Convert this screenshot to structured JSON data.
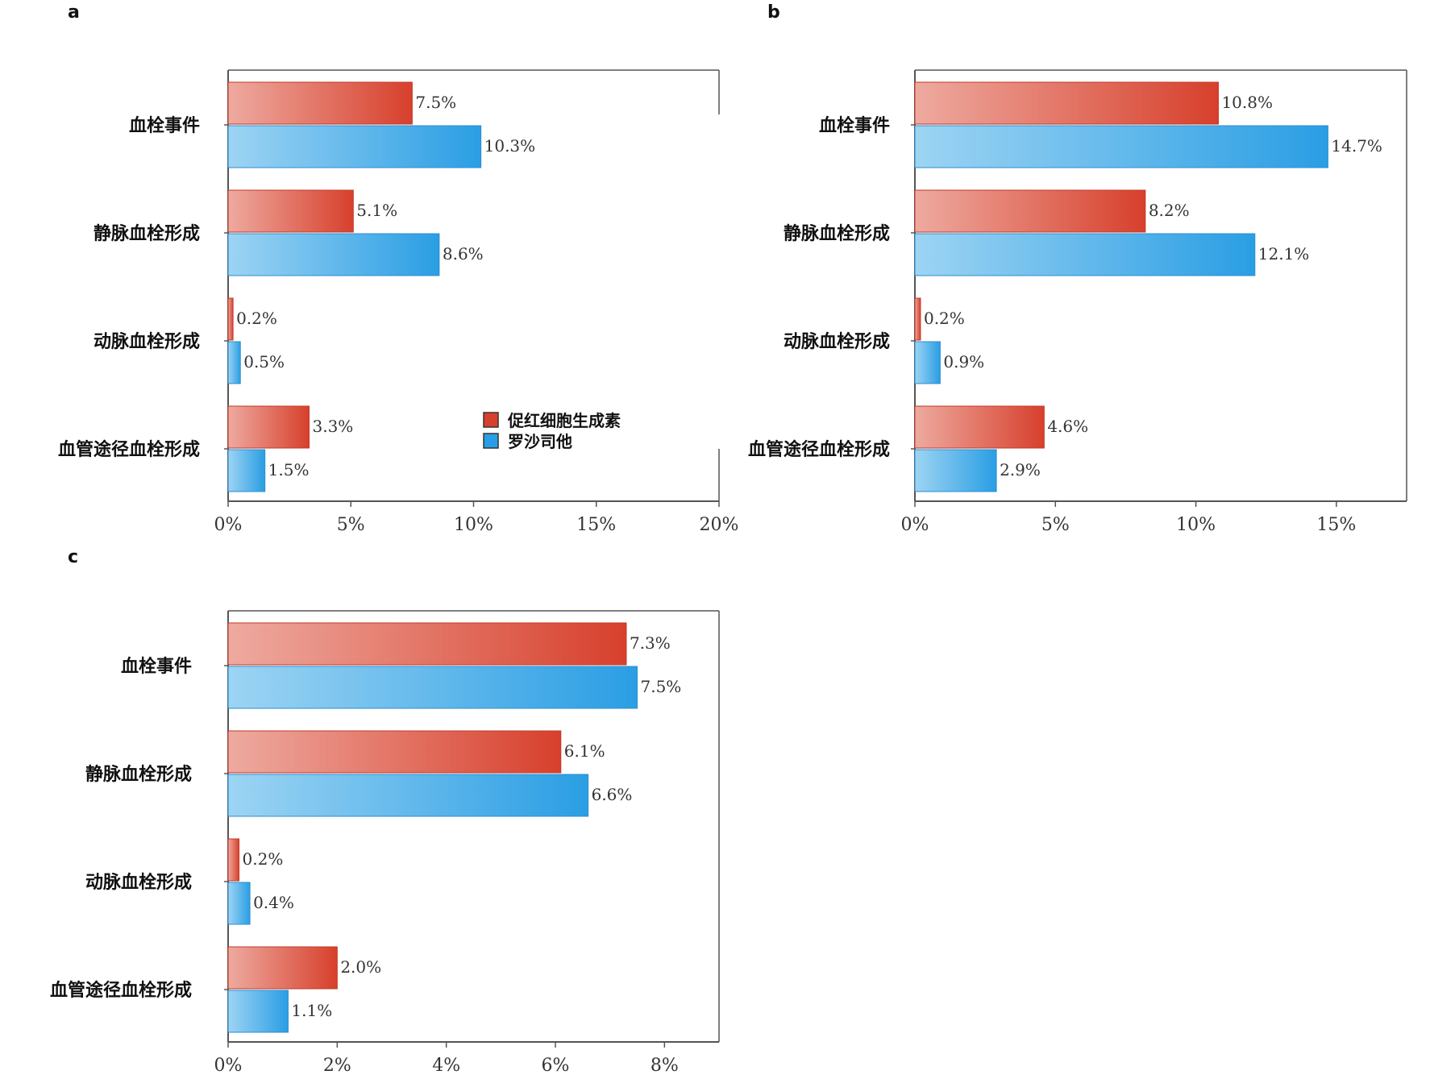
{
  "colors": {
    "epo_dark": "#d7402c",
    "epo_light": "#eeaaa0",
    "epo_stroke": "#c23a28",
    "rox_dark": "#2a9ee4",
    "rox_light": "#9dd4f3",
    "rox_stroke": "#2b8ed0",
    "frame": "#555555"
  },
  "legend": {
    "items": [
      "促红细胞生成素",
      "罗沙司他"
    ]
  },
  "chart_data": [
    {
      "panel": "a",
      "type": "bar",
      "orientation": "horizontal",
      "categories": [
        "血栓事件",
        "静脉血栓形成",
        "动脉血栓形成",
        "血管途径血栓形成"
      ],
      "series": [
        {
          "name": "促红细胞生成素",
          "values": [
            7.5,
            5.1,
            0.2,
            3.3
          ],
          "labels": [
            "7.5%",
            "5.1%",
            "0.2%",
            "3.3%"
          ]
        },
        {
          "name": "罗沙司他",
          "values": [
            10.3,
            8.6,
            0.5,
            1.5
          ],
          "labels": [
            "10.3%",
            "8.6%",
            "0.5%",
            "1.5%"
          ]
        }
      ],
      "xlim": [
        0,
        20
      ],
      "xticks": [
        0,
        5,
        10,
        15,
        20
      ],
      "xtick_labels": [
        "0%",
        "5%",
        "10%",
        "15%",
        "20%"
      ],
      "legend_position": "lower-right",
      "grid": false
    },
    {
      "panel": "b",
      "type": "bar",
      "orientation": "horizontal",
      "categories": [
        "血栓事件",
        "静脉血栓形成",
        "动脉血栓形成",
        "血管途径血栓形成"
      ],
      "series": [
        {
          "name": "促红细胞生成素",
          "values": [
            10.8,
            8.2,
            0.2,
            4.6
          ],
          "labels": [
            "10.8%",
            "8.2%",
            "0.2%",
            "4.6%"
          ]
        },
        {
          "name": "罗沙司他",
          "values": [
            14.7,
            12.1,
            0.9,
            2.9
          ],
          "labels": [
            "14.7%",
            "12.1%",
            "0.9%",
            "2.9%"
          ]
        }
      ],
      "xlim": [
        0,
        17.5
      ],
      "xticks": [
        0,
        5,
        10,
        15
      ],
      "xtick_labels": [
        "0%",
        "5%",
        "10%",
        "15%"
      ],
      "grid": false
    },
    {
      "panel": "c",
      "type": "bar",
      "orientation": "horizontal",
      "categories": [
        "血栓事件",
        "静脉血栓形成",
        "动脉血栓形成",
        "血管途径血栓形成"
      ],
      "series": [
        {
          "name": "促红细胞生成素",
          "values": [
            7.3,
            6.1,
            0.2,
            2.0
          ],
          "labels": [
            "7.3%",
            "6.1%",
            "0.2%",
            "2.0%"
          ]
        },
        {
          "name": "罗沙司他",
          "values": [
            7.5,
            6.6,
            0.4,
            1.1
          ],
          "labels": [
            "7.5%",
            "6.6%",
            "0.4%",
            "1.1%"
          ]
        }
      ],
      "xlim": [
        0,
        9
      ],
      "xticks": [
        0,
        2,
        4,
        6,
        8
      ],
      "xtick_labels": [
        "0%",
        "2%",
        "4%",
        "6%",
        "8%"
      ],
      "grid": false
    }
  ]
}
